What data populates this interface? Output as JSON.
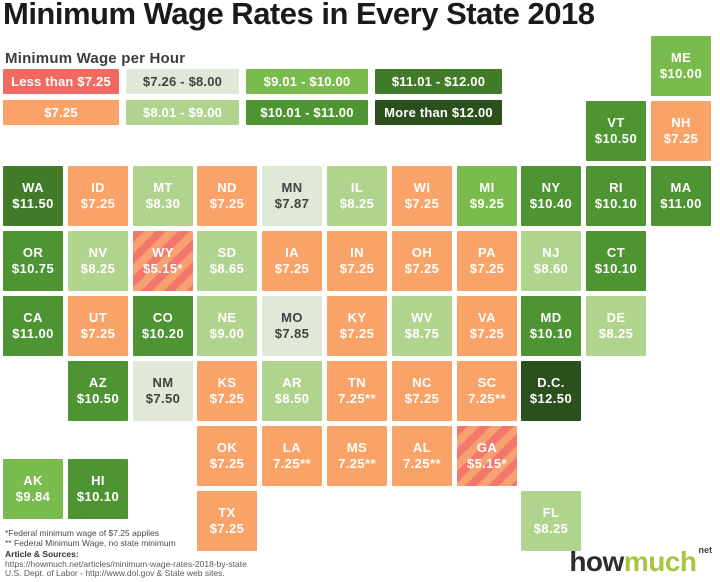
{
  "title": "Minimum Wage Rates in Every State 2018",
  "legend": {
    "title": "Minimum Wage per Hour",
    "items": [
      {
        "label": "Less than $7.25",
        "category": "lt_725"
      },
      {
        "label": "$7.26 - $8.00",
        "category": "726_800"
      },
      {
        "label": "$9.01 - $10.00",
        "category": "901_1000"
      },
      {
        "label": "$11.01 - $12.00",
        "category": "1101_1200"
      },
      {
        "label": "$7.25",
        "category": "725"
      },
      {
        "label": "$8.01 - $9.00",
        "category": "801_900"
      },
      {
        "label": "$10.01 - $11.00",
        "category": "1001_1100"
      },
      {
        "label": "More than $12.00",
        "category": "gt_1200"
      }
    ]
  },
  "palette": {
    "lt_725": {
      "type": "striped",
      "colors": [
        "#F3786B",
        "#F7A173"
      ],
      "legend_color": "#F26A5F",
      "text": "#FFFFFF"
    },
    "725": {
      "type": "solid",
      "color": "#F9A369",
      "text": "#FFFFFF"
    },
    "726_800": {
      "type": "solid",
      "color": "#E0E9D8",
      "text": "#424242"
    },
    "801_900": {
      "type": "solid",
      "color": "#B0D48E",
      "text": "#FFFFFF"
    },
    "901_1000": {
      "type": "solid",
      "color": "#7ABB4D",
      "text": "#FFFFFF"
    },
    "1001_1100": {
      "type": "solid",
      "color": "#4F9433",
      "text": "#FFFFFF"
    },
    "1101_1200": {
      "type": "solid",
      "color": "#417B2A",
      "text": "#FFFFFF"
    },
    "gt_1200": {
      "type": "solid",
      "color": "#2B501E",
      "text": "#FFFFFF"
    }
  },
  "chart_data": {
    "type": "heatmap",
    "subtype": "state-tile-grid-map",
    "title": "Minimum Wage Rates in Every State 2018",
    "legend_title": "Minimum Wage per Hour",
    "legend_position": "top-left",
    "bins": [
      "Less than $7.25",
      "$7.25",
      "$7.26 - $8.00",
      "$8.01 - $9.00",
      "$9.01 - $10.00",
      "$10.01 - $11.00",
      "$11.01 - $12.00",
      "More than $12.00"
    ],
    "tiles": [
      {
        "state": "ME",
        "wage": "$10.00",
        "value": 10.0,
        "category": "901_1000",
        "row": 0,
        "col": 11
      },
      {
        "state": "VT",
        "wage": "$10.50",
        "value": 10.5,
        "category": "1001_1100",
        "row": 1,
        "col": 10
      },
      {
        "state": "NH",
        "wage": "$7.25",
        "value": 7.25,
        "category": "725",
        "row": 1,
        "col": 11
      },
      {
        "state": "WA",
        "wage": "$11.50",
        "value": 11.5,
        "category": "1101_1200",
        "row": 2,
        "col": 1
      },
      {
        "state": "ID",
        "wage": "$7.25",
        "value": 7.25,
        "category": "725",
        "row": 2,
        "col": 2
      },
      {
        "state": "MT",
        "wage": "$8.30",
        "value": 8.3,
        "category": "801_900",
        "row": 2,
        "col": 3
      },
      {
        "state": "ND",
        "wage": "$7.25",
        "value": 7.25,
        "category": "725",
        "row": 2,
        "col": 4
      },
      {
        "state": "MN",
        "wage": "$7.87",
        "value": 7.87,
        "category": "726_800",
        "row": 2,
        "col": 5
      },
      {
        "state": "IL",
        "wage": "$8.25",
        "value": 8.25,
        "category": "801_900",
        "row": 2,
        "col": 6
      },
      {
        "state": "WI",
        "wage": "$7.25",
        "value": 7.25,
        "category": "725",
        "row": 2,
        "col": 7
      },
      {
        "state": "MI",
        "wage": "$9.25",
        "value": 9.25,
        "category": "901_1000",
        "row": 2,
        "col": 8
      },
      {
        "state": "NY",
        "wage": "$10.40",
        "value": 10.4,
        "category": "1001_1100",
        "row": 2,
        "col": 9
      },
      {
        "state": "RI",
        "wage": "$10.10",
        "value": 10.1,
        "category": "1001_1100",
        "row": 2,
        "col": 10
      },
      {
        "state": "MA",
        "wage": "$11.00",
        "value": 11.0,
        "category": "1001_1100",
        "row": 2,
        "col": 11
      },
      {
        "state": "OR",
        "wage": "$10.75",
        "value": 10.75,
        "category": "1001_1100",
        "row": 3,
        "col": 1
      },
      {
        "state": "NV",
        "wage": "$8.25",
        "value": 8.25,
        "category": "801_900",
        "row": 3,
        "col": 2
      },
      {
        "state": "WY",
        "wage": "$5.15*",
        "value": 5.15,
        "category": "lt_725",
        "row": 3,
        "col": 3
      },
      {
        "state": "SD",
        "wage": "$8.65",
        "value": 8.65,
        "category": "801_900",
        "row": 3,
        "col": 4
      },
      {
        "state": "IA",
        "wage": "$7.25",
        "value": 7.25,
        "category": "725",
        "row": 3,
        "col": 5
      },
      {
        "state": "IN",
        "wage": "$7.25",
        "value": 7.25,
        "category": "725",
        "row": 3,
        "col": 6
      },
      {
        "state": "OH",
        "wage": "$7.25",
        "value": 7.25,
        "category": "725",
        "row": 3,
        "col": 7
      },
      {
        "state": "PA",
        "wage": "$7.25",
        "value": 7.25,
        "category": "725",
        "row": 3,
        "col": 8
      },
      {
        "state": "NJ",
        "wage": "$8.60",
        "value": 8.6,
        "category": "801_900",
        "row": 3,
        "col": 9
      },
      {
        "state": "CT",
        "wage": "$10.10",
        "value": 10.1,
        "category": "1001_1100",
        "row": 3,
        "col": 10
      },
      {
        "state": "CA",
        "wage": "$11.00",
        "value": 11.0,
        "category": "1001_1100",
        "row": 4,
        "col": 1
      },
      {
        "state": "UT",
        "wage": "$7.25",
        "value": 7.25,
        "category": "725",
        "row": 4,
        "col": 2
      },
      {
        "state": "CO",
        "wage": "$10.20",
        "value": 10.2,
        "category": "1001_1100",
        "row": 4,
        "col": 3
      },
      {
        "state": "NE",
        "wage": "$9.00",
        "value": 9.0,
        "category": "801_900",
        "row": 4,
        "col": 4
      },
      {
        "state": "MO",
        "wage": "$7.85",
        "value": 7.85,
        "category": "726_800",
        "row": 4,
        "col": 5
      },
      {
        "state": "KY",
        "wage": "$7.25",
        "value": 7.25,
        "category": "725",
        "row": 4,
        "col": 6
      },
      {
        "state": "WV",
        "wage": "$8.75",
        "value": 8.75,
        "category": "801_900",
        "row": 4,
        "col": 7
      },
      {
        "state": "VA",
        "wage": "$7.25",
        "value": 7.25,
        "category": "725",
        "row": 4,
        "col": 8
      },
      {
        "state": "MD",
        "wage": "$10.10",
        "value": 10.1,
        "category": "1001_1100",
        "row": 4,
        "col": 9
      },
      {
        "state": "DE",
        "wage": "$8.25",
        "value": 8.25,
        "category": "801_900",
        "row": 4,
        "col": 10
      },
      {
        "state": "AZ",
        "wage": "$10.50",
        "value": 10.5,
        "category": "1001_1100",
        "row": 5,
        "col": 2
      },
      {
        "state": "NM",
        "wage": "$7.50",
        "value": 7.5,
        "category": "726_800",
        "row": 5,
        "col": 3
      },
      {
        "state": "KS",
        "wage": "$7.25",
        "value": 7.25,
        "category": "725",
        "row": 5,
        "col": 4
      },
      {
        "state": "AR",
        "wage": "$8.50",
        "value": 8.5,
        "category": "801_900",
        "row": 5,
        "col": 5
      },
      {
        "state": "TN",
        "wage": "7.25**",
        "value": 7.25,
        "category": "725",
        "row": 5,
        "col": 6
      },
      {
        "state": "NC",
        "wage": "$7.25",
        "value": 7.25,
        "category": "725",
        "row": 5,
        "col": 7
      },
      {
        "state": "SC",
        "wage": "7.25**",
        "value": 7.25,
        "category": "725",
        "row": 5,
        "col": 8
      },
      {
        "state": "D.C.",
        "wage": "$12.50",
        "value": 12.5,
        "category": "gt_1200",
        "row": 5,
        "col": 9
      },
      {
        "state": "OK",
        "wage": "$7.25",
        "value": 7.25,
        "category": "725",
        "row": 6,
        "col": 4
      },
      {
        "state": "LA",
        "wage": "7.25**",
        "value": 7.25,
        "category": "725",
        "row": 6,
        "col": 5
      },
      {
        "state": "MS",
        "wage": "7.25**",
        "value": 7.25,
        "category": "725",
        "row": 6,
        "col": 6
      },
      {
        "state": "AL",
        "wage": "7.25**",
        "value": 7.25,
        "category": "725",
        "row": 6,
        "col": 7
      },
      {
        "state": "GA",
        "wage": "$5.15*",
        "value": 5.15,
        "category": "lt_725",
        "row": 6,
        "col": 8
      },
      {
        "state": "AK",
        "wage": "$9.84",
        "value": 9.84,
        "category": "901_1000",
        "row": 6.5,
        "col": 1
      },
      {
        "state": "HI",
        "wage": "$10.10",
        "value": 10.1,
        "category": "1001_1100",
        "row": 6.5,
        "col": 2
      },
      {
        "state": "TX",
        "wage": "$7.25",
        "value": 7.25,
        "category": "725",
        "row": 7,
        "col": 4
      },
      {
        "state": "FL",
        "wage": "$8.25",
        "value": 8.25,
        "category": "801_900",
        "row": 7,
        "col": 9
      }
    ]
  },
  "footnotes": [
    "*Federal minimum wage of $7.25 applies",
    "** Federal Minimum Wage, no state minimum"
  ],
  "sources": {
    "heading": "Article & Sources:",
    "lines": [
      "https://howmuch.net/articles/minimum-wage-rates-2018-by-state",
      "U.S. Dept. of Labor -  http://www.dol.gov & State web sites."
    ]
  },
  "logo": {
    "part1": "how",
    "part2": "much",
    "suffix": "net",
    "green": "#A5C640",
    "dark": "#2D2D2D"
  }
}
